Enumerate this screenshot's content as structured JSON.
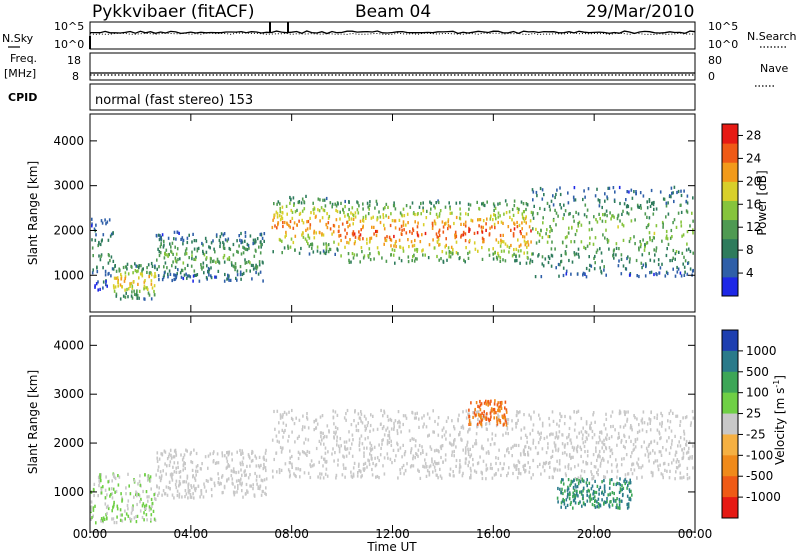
{
  "header": {
    "radar": "Pykkvibaer (fitACF)",
    "beam": "Beam 04",
    "date": "29/Mar/2010",
    "mode_text": "normal (fast stereo) 153"
  },
  "panels": {
    "nsky": {
      "left_label": "N.Sky",
      "right_label": "N.Search",
      "left_ticks": [
        "10^5",
        "10^0"
      ],
      "right_ticks": [
        "10^5",
        "10^0"
      ]
    },
    "freq": {
      "left_label": "Freq.",
      "left_unit": "[MHz]",
      "right_label": "Nave",
      "left_ticks": [
        "18",
        "8"
      ],
      "right_ticks": [
        "80",
        "0"
      ]
    },
    "cpid": {
      "label": "CPID"
    }
  },
  "chart_data": [
    {
      "type": "heatmap",
      "title": "",
      "xlabel": "Time UT",
      "ylabel": "Slant Range [km]",
      "x_ticks": [
        "00:00",
        "04:00",
        "08:00",
        "12:00",
        "16:00",
        "20:00",
        "00:00"
      ],
      "x_range_hours": [
        0,
        24
      ],
      "y_ticks": [
        "1000",
        "2000",
        "3000",
        "4000"
      ],
      "y_range_km": [
        180,
        4600
      ],
      "colorbar": {
        "label": "Power [dB]",
        "ticks": [
          "4",
          "8",
          "12",
          "16",
          "20",
          "24",
          "28"
        ],
        "range": [
          0,
          30
        ],
        "colors": [
          "#1e28e6",
          "#2f5fa8",
          "#2e7b5c",
          "#4f9a52",
          "#86c43c",
          "#d8cf2a",
          "#f29a1a",
          "#ef5a16",
          "#e61a14"
        ]
      },
      "echo_regions": [
        {
          "t": [
            0.0,
            0.9
          ],
          "range": [
            700,
            2300
          ],
          "level": 10
        },
        {
          "t": [
            0.9,
            2.6
          ],
          "range": [
            500,
            1300
          ],
          "level": 20
        },
        {
          "t": [
            2.6,
            6.9
          ],
          "range": [
            900,
            2000
          ],
          "level": 12
        },
        {
          "t": [
            7.2,
            9.8
          ],
          "range": [
            1500,
            2800
          ],
          "level": 22
        },
        {
          "t": [
            9.8,
            17.5
          ],
          "range": [
            1300,
            2700
          ],
          "level": 24
        },
        {
          "t": [
            17.5,
            23.9
          ],
          "range": [
            1000,
            3000
          ],
          "level": 14
        }
      ]
    },
    {
      "type": "heatmap",
      "title": "",
      "xlabel": "Time UT",
      "ylabel": "Slant Range [km]",
      "x_ticks": [
        "00:00",
        "04:00",
        "08:00",
        "12:00",
        "16:00",
        "20:00",
        "00:00"
      ],
      "x_range_hours": [
        0,
        24
      ],
      "y_ticks": [
        "1000",
        "2000",
        "3000",
        "4000"
      ],
      "y_range_km": [
        180,
        4600
      ],
      "colorbar": {
        "label": "Velocity [m s^-1]",
        "ticks": [
          "1000",
          "500",
          "100",
          "25",
          "-25",
          "-100",
          "-500",
          "-1000"
        ],
        "colors": [
          "#1e3fb0",
          "#2a7a8a",
          "#3da657",
          "#6fcf45",
          "#c8c8c8",
          "#f5b042",
          "#f08a1a",
          "#ef5a16",
          "#e61a14"
        ]
      },
      "echo_regions": [
        {
          "t": [
            0.0,
            2.6
          ],
          "range": [
            400,
            1400
          ],
          "velocity": 25
        },
        {
          "t": [
            2.6,
            7.0
          ],
          "range": [
            900,
            1900
          ],
          "velocity": 0
        },
        {
          "t": [
            7.2,
            23.9
          ],
          "range": [
            1300,
            2700
          ],
          "velocity": 0
        },
        {
          "t": [
            15.0,
            16.5
          ],
          "range": [
            2400,
            2900
          ],
          "velocity": -500
        },
        {
          "t": [
            18.5,
            21.5
          ],
          "range": [
            700,
            1300
          ],
          "velocity": 500
        }
      ]
    }
  ]
}
